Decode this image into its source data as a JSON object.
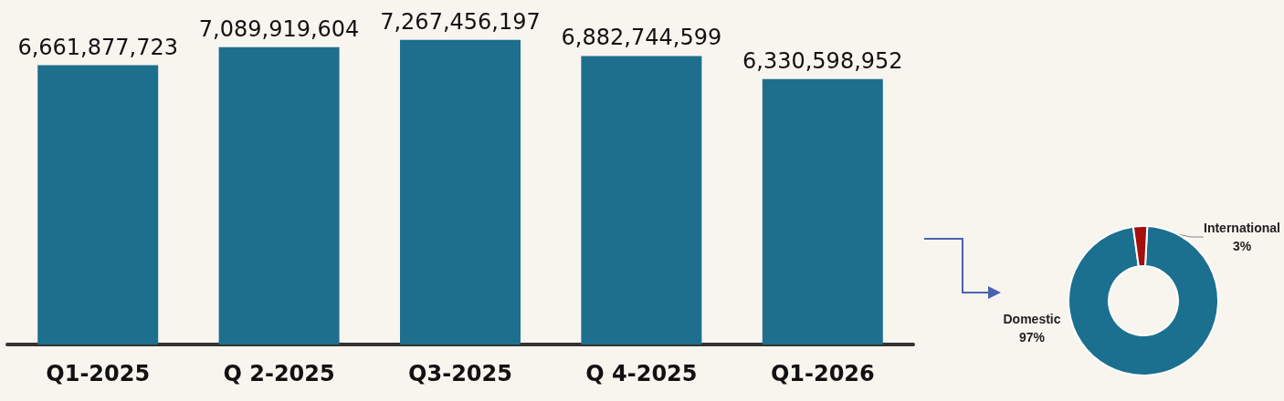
{
  "chart_data": [
    {
      "type": "bar",
      "categories": [
        "Q1-2025",
        "Q 2-2025",
        "Q3-2025",
        "Q 4-2025",
        "Q1-2026"
      ],
      "values": [
        6661877723,
        7089919604,
        7267456197,
        6882744599,
        6330598952
      ],
      "value_labels": [
        "6,661,877,723",
        "7,089,919,604",
        "7,267,456,197",
        "6,882,744,599",
        "6,330,598,952"
      ],
      "color": "#1e6f8e",
      "tick_labels": "x"
    },
    {
      "type": "donut",
      "categories": [
        "Domestic",
        "International"
      ],
      "values": [
        97,
        3
      ],
      "colors": [
        "#1b7090",
        "#a3100e"
      ],
      "value_labels": [
        "97%",
        "3%"
      ],
      "legend": false
    }
  ]
}
